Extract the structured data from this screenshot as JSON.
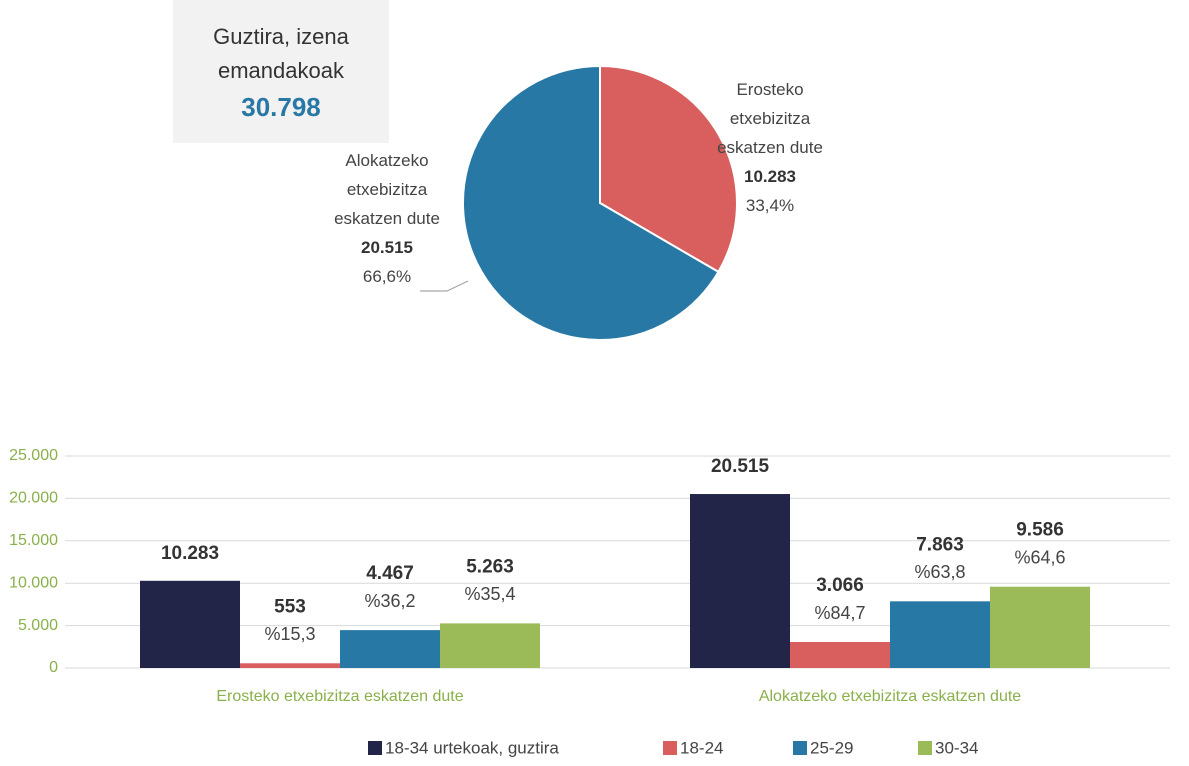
{
  "chart_data": [
    {
      "type": "pie",
      "categories": [
        "Erosteko etxebizitza eskatzen dute",
        "Alokatzeko etxebizitza eskatzen dute"
      ],
      "values": [
        10283,
        20515
      ],
      "value_labels": [
        "10.283",
        "20.515"
      ],
      "percents": [
        33.4,
        66.6
      ],
      "percent_labels": [
        "33,4%",
        "66,6%"
      ],
      "colors": [
        "#d95f5f",
        "#2878a6"
      ],
      "total_title": "Guztira, izena emandakoak",
      "total": {
        "value": 30798,
        "label": "30.798"
      }
    },
    {
      "type": "bar",
      "categories": [
        "Erosteko etxebizitza eskatzen dute",
        "Alokatzeko etxebizitza eskatzen dute"
      ],
      "series": [
        {
          "name": "18-34 urtekoak, guztira",
          "color": "#222548",
          "values": [
            10283,
            20515
          ],
          "value_labels": [
            "10.283",
            "20.515"
          ]
        },
        {
          "name": "18-24",
          "color": "#d95f5f",
          "values": [
            553,
            3066
          ],
          "value_labels": [
            "553",
            "3.066"
          ],
          "percent_labels": [
            "%15,3",
            "%84,7"
          ]
        },
        {
          "name": "25-29",
          "color": "#2878a6",
          "values": [
            4467,
            7863
          ],
          "value_labels": [
            "4.467",
            "7.863"
          ],
          "percent_labels": [
            "%36,2",
            "%63,8"
          ]
        },
        {
          "name": "30-34",
          "color": "#9bbb59",
          "values": [
            5263,
            9586
          ],
          "value_labels": [
            "5.263",
            "9.586"
          ],
          "percent_labels": [
            "%35,4",
            "%64,6"
          ]
        }
      ],
      "ylim": [
        0,
        25000
      ],
      "yticks": [
        0,
        {
          "value": 5000,
          "label": "5.000"
        },
        {
          "value": 10000,
          "label": "10.000"
        },
        {
          "value": 15000,
          "label": "15.000"
        },
        {
          "value": 20000,
          "label": "20.000"
        },
        {
          "value": 25000,
          "label": "25.000"
        }
      ],
      "grid": true,
      "legend": "bottom"
    }
  ]
}
